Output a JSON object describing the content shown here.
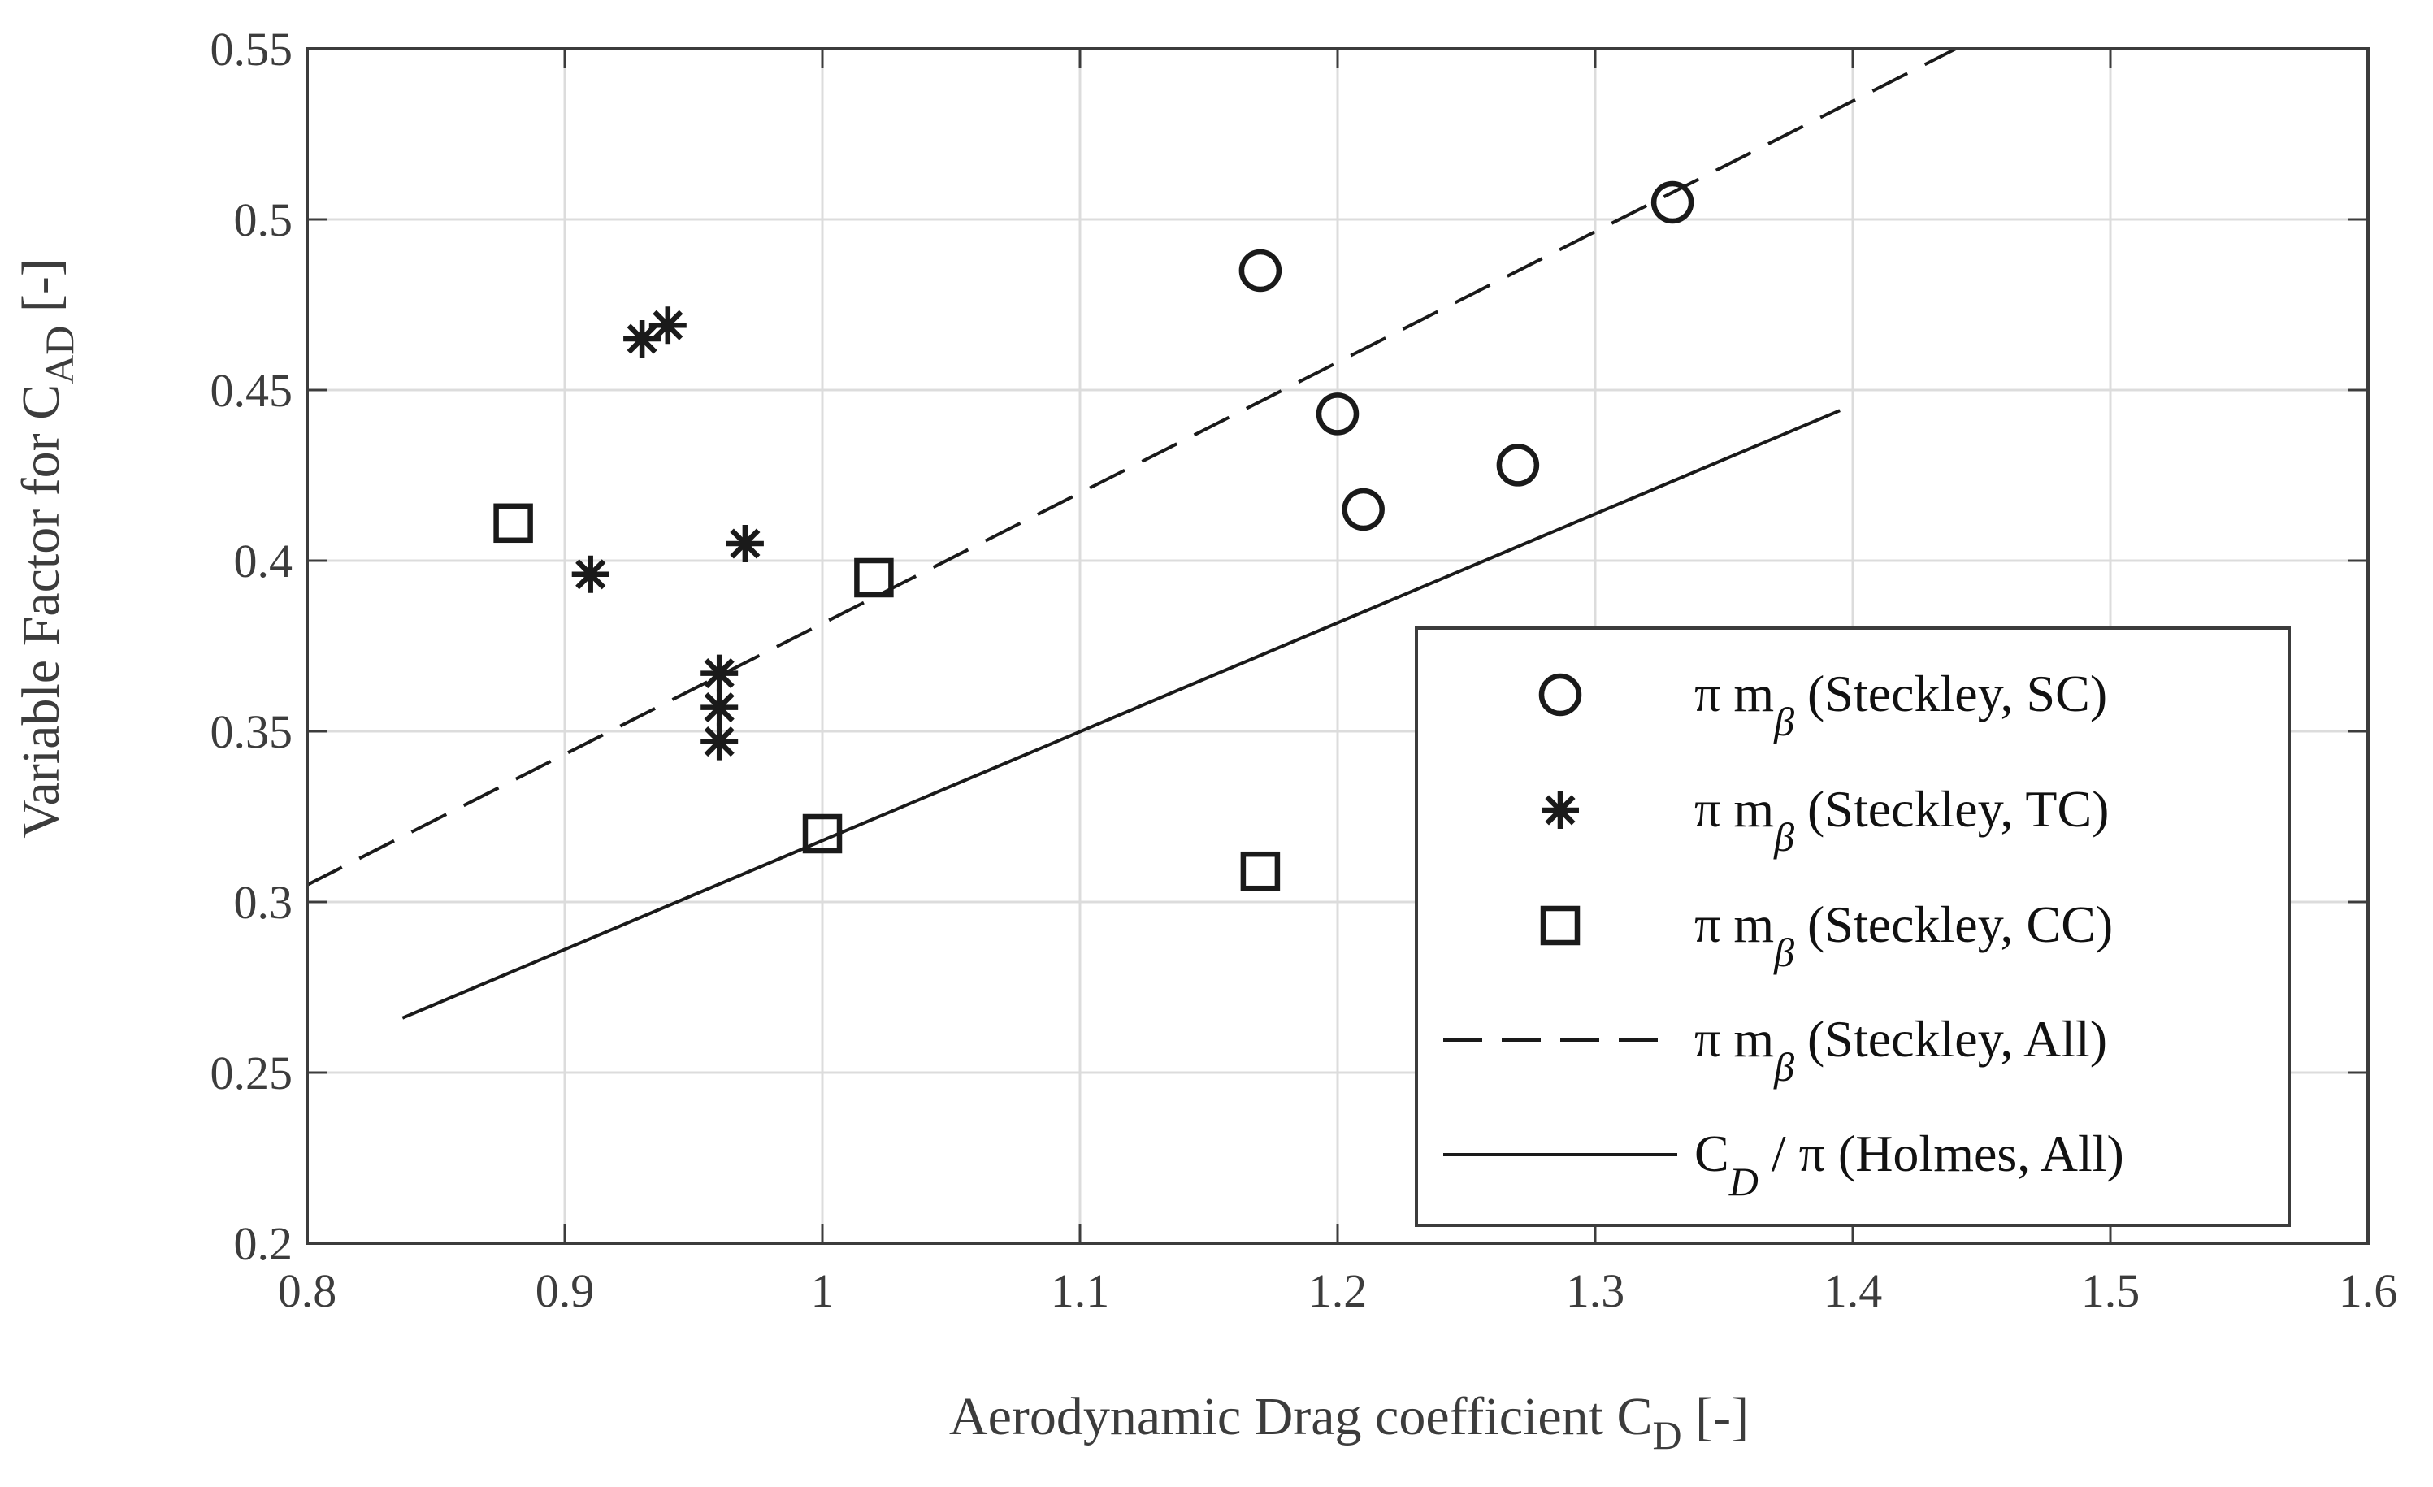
{
  "chart_data": {
    "type": "scatter",
    "title": "",
    "xlabel": {
      "main": "Aerodynamic Drag coefficient C",
      "sub": "D",
      "suffix": " [-]"
    },
    "ylabel": {
      "main": "Variable Factor for C",
      "sub": "AD",
      "suffix": " [-]"
    },
    "xlim": [
      0.8,
      1.6
    ],
    "ylim": [
      0.2,
      0.55
    ],
    "xticks": [
      0.8,
      0.9,
      1.0,
      1.1,
      1.2,
      1.3,
      1.4,
      1.5,
      1.6
    ],
    "xtick_labels": [
      "0.8",
      "0.9",
      "1",
      "1.1",
      "1.2",
      "1.3",
      "1.4",
      "1.5",
      "1.6"
    ],
    "yticks": [
      0.2,
      0.25,
      0.3,
      0.35,
      0.4,
      0.45,
      0.5,
      0.55
    ],
    "ytick_labels": [
      "0.2",
      "0.25",
      "0.3",
      "0.35",
      "0.4",
      "0.45",
      "0.5",
      "0.55"
    ],
    "grid": true,
    "legend_position": "bottom-right",
    "series": [
      {
        "name": "π m_β (Steckley, SC)",
        "legend": {
          "pre": "π m",
          "sub": "β",
          "post": " (Steckley, SC)"
        },
        "marker": "circle",
        "points": [
          [
            1.17,
            0.485
          ],
          [
            1.2,
            0.443
          ],
          [
            1.21,
            0.415
          ],
          [
            1.27,
            0.428
          ],
          [
            1.33,
            0.505
          ]
        ]
      },
      {
        "name": "π m_β (Steckley, TC)",
        "legend": {
          "pre": "π m",
          "sub": "β",
          "post": " (Steckley, TC)"
        },
        "marker": "asterisk",
        "points": [
          [
            0.93,
            0.465
          ],
          [
            0.94,
            0.469
          ],
          [
            0.91,
            0.396
          ],
          [
            0.97,
            0.405
          ],
          [
            0.96,
            0.367
          ],
          [
            0.96,
            0.357
          ],
          [
            0.96,
            0.347
          ]
        ]
      },
      {
        "name": "π m_β (Steckley, CC)",
        "legend": {
          "pre": "π m",
          "sub": "β",
          "post": " (Steckley, CC)"
        },
        "marker": "square",
        "points": [
          [
            0.88,
            0.411
          ],
          [
            1.02,
            0.395
          ],
          [
            1.0,
            0.32
          ],
          [
            1.17,
            0.309
          ]
        ]
      },
      {
        "name": "π m_β (Steckley, All)",
        "legend": {
          "pre": "π m",
          "sub": "β",
          "post": " (Steckley, All)"
        },
        "line": "dashed",
        "points": [
          [
            0.8,
            0.305
          ],
          [
            1.44,
            0.55
          ]
        ]
      },
      {
        "name": "C_D / π (Holmes, All)",
        "legend": {
          "pre": "C",
          "sub": "D",
          "post": " / π (Holmes, All)"
        },
        "line": "solid",
        "points": [
          [
            0.837,
            0.266
          ],
          [
            1.395,
            0.444
          ]
        ]
      }
    ]
  },
  "colors": {
    "axis": "#3c3c3c",
    "grid": "#dcdcdc",
    "data": "#1a1a1a",
    "background": "#ffffff"
  }
}
